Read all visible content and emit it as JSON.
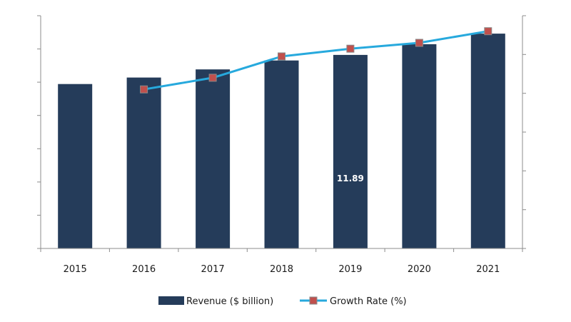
{
  "chart_data": {
    "type": "bar",
    "categories": [
      "2015",
      "2016",
      "2017",
      "2018",
      "2019",
      "2020",
      "2021"
    ],
    "series": [
      {
        "name": "Revenue ($ billion)",
        "type": "bar",
        "axis": "left",
        "values": [
          10.1,
          10.5,
          11.0,
          11.55,
          11.89,
          12.55,
          13.2
        ],
        "data_labels": [
          null,
          null,
          null,
          null,
          "11.89",
          null,
          null
        ]
      },
      {
        "name": "Growth Rate (%)",
        "type": "line",
        "axis": "right",
        "values": [
          null,
          4.1,
          4.4,
          4.95,
          5.15,
          5.3,
          5.6
        ]
      }
    ],
    "ylim_left": [
      0,
      14.3
    ],
    "ylim_right": [
      0,
      6.0
    ],
    "left_axis_ticks": 7,
    "right_axis_ticks": 6,
    "left_tick_labels_shown": false,
    "right_tick_labels_shown": false,
    "grid": false,
    "legend_position": "bottom-center",
    "colors": {
      "bar": "#253c5a",
      "line": "#27a9dd",
      "marker_fill": "#c0504d",
      "marker_stroke": "#8a8a8a",
      "axis": "#8c8c8c"
    }
  }
}
